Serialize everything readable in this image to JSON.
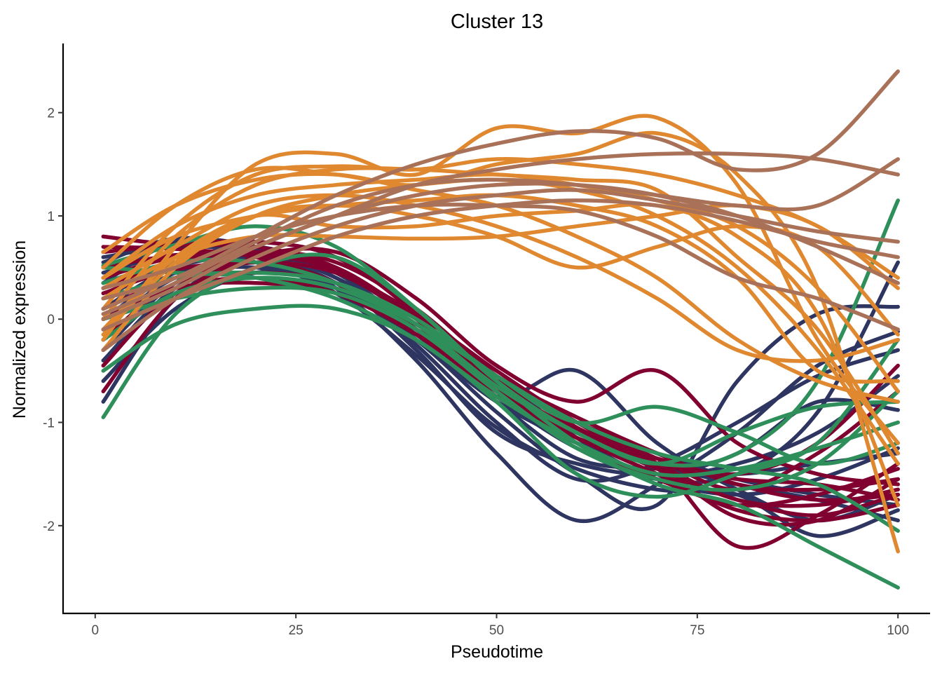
{
  "chart_data": {
    "type": "line",
    "title": "Cluster 13",
    "xlabel": "Pseudotime",
    "ylabel": "Normalized expression",
    "xlim": [
      -4,
      104
    ],
    "ylim": [
      -2.85,
      2.67
    ],
    "x_ticks": [
      0,
      25,
      50,
      75,
      100
    ],
    "y_ticks": [
      -2,
      -1,
      0,
      1,
      2
    ],
    "x_tick_labels": [
      "0",
      "25",
      "50",
      "75",
      "100"
    ],
    "y_tick_labels": [
      "-2",
      "-1",
      "0",
      "1",
      "2"
    ],
    "grid": false,
    "legend": "none",
    "x": [
      1,
      10,
      20,
      30,
      40,
      50,
      60,
      70,
      80,
      90,
      100
    ],
    "series": [
      {
        "color": "#2E3561",
        "values": [
          0.55,
          0.78,
          0.68,
          0.3,
          -0.4,
          -1.3,
          -1.95,
          -1.6,
          -1.1,
          -0.45,
          -0.12
        ]
      },
      {
        "color": "#2E3561",
        "values": [
          -0.8,
          0.2,
          0.6,
          0.4,
          -0.2,
          -0.8,
          -1.35,
          -1.45,
          -1.5,
          -1.4,
          -1.3
        ]
      },
      {
        "color": "#2E3561",
        "values": [
          0.2,
          0.55,
          0.7,
          0.45,
          -0.1,
          -0.7,
          -1.1,
          -1.4,
          -1.6,
          -1.75,
          -1.95
        ]
      },
      {
        "color": "#2E3561",
        "values": [
          -0.4,
          0.3,
          0.55,
          0.35,
          -0.15,
          -0.75,
          -1.25,
          -1.55,
          -1.5,
          -0.9,
          0.55
        ]
      },
      {
        "color": "#2E3561",
        "values": [
          0.6,
          0.7,
          0.65,
          0.4,
          -0.1,
          -0.75,
          -0.5,
          -1.2,
          -1.65,
          -1.95,
          -1.7
        ]
      },
      {
        "color": "#2E3561",
        "values": [
          -0.1,
          0.4,
          0.5,
          0.3,
          -0.2,
          -0.9,
          -1.5,
          -1.8,
          -0.6,
          0.05,
          0.12
        ]
      },
      {
        "color": "#2E3561",
        "values": [
          0.35,
          0.75,
          0.7,
          0.4,
          -0.05,
          -0.6,
          -1.0,
          -1.3,
          -1.55,
          -1.7,
          -1.8
        ]
      },
      {
        "color": "#2E3561",
        "values": [
          -0.6,
          0.1,
          0.45,
          0.35,
          -0.3,
          -1.1,
          -1.4,
          -1.5,
          -1.3,
          -0.8,
          -0.88
        ]
      },
      {
        "color": "#2E3561",
        "values": [
          0.1,
          0.5,
          0.6,
          0.35,
          -0.25,
          -1.0,
          -1.55,
          -1.4,
          -1.0,
          -0.55,
          -0.3
        ]
      },
      {
        "color": "#2E3561",
        "values": [
          0.45,
          0.62,
          0.55,
          0.25,
          -0.35,
          -1.05,
          -1.45,
          -1.65,
          -1.7,
          -2.1,
          -1.85
        ]
      },
      {
        "color": "#2E3561",
        "values": [
          -0.3,
          0.35,
          0.6,
          0.45,
          0.0,
          -0.55,
          -1.15,
          -1.55,
          -1.7,
          -1.55,
          -1.25
        ]
      },
      {
        "color": "#2E3561",
        "values": [
          0.0,
          0.45,
          0.55,
          0.35,
          -0.2,
          -0.8,
          -1.2,
          -1.5,
          -1.4,
          -1.1,
          -0.55
        ]
      },
      {
        "color": "#800030",
        "values": [
          0.8,
          0.72,
          0.7,
          0.5,
          0.0,
          -0.65,
          -1.1,
          -1.45,
          -1.75,
          -1.9,
          -1.7
        ]
      },
      {
        "color": "#800030",
        "values": [
          -0.7,
          0.2,
          0.6,
          0.65,
          0.2,
          -0.45,
          -0.8,
          -0.5,
          -1.2,
          -1.5,
          -1.6
        ]
      },
      {
        "color": "#800030",
        "values": [
          0.3,
          0.55,
          0.65,
          0.55,
          0.1,
          -0.55,
          -1.05,
          -1.4,
          -2.2,
          -1.9,
          -1.4
        ]
      },
      {
        "color": "#800030",
        "values": [
          0.65,
          0.72,
          0.75,
          0.6,
          0.05,
          -0.7,
          -1.15,
          -1.5,
          -1.85,
          -1.95,
          -1.8
        ]
      },
      {
        "color": "#800030",
        "values": [
          -0.2,
          0.35,
          0.45,
          0.35,
          -0.05,
          -0.6,
          -1.0,
          -1.3,
          -1.6,
          -1.65,
          -1.55
        ]
      },
      {
        "color": "#800030",
        "values": [
          0.1,
          0.4,
          0.55,
          0.45,
          0.05,
          -0.5,
          -1.0,
          -1.4,
          -1.75,
          -1.8,
          -1.65
        ]
      },
      {
        "color": "#800030",
        "values": [
          0.5,
          0.62,
          0.65,
          0.5,
          0.0,
          -0.65,
          -1.2,
          -1.55,
          -1.8,
          -1.7,
          -1.45
        ]
      },
      {
        "color": "#800030",
        "values": [
          -0.45,
          0.25,
          0.4,
          0.25,
          -0.15,
          -0.7,
          -1.1,
          -1.35,
          -1.5,
          -1.2,
          -0.45
        ]
      },
      {
        "color": "#800030",
        "values": [
          0.25,
          0.48,
          0.55,
          0.45,
          0.0,
          -0.55,
          -0.95,
          -1.3,
          -1.6,
          -1.75,
          -1.7
        ]
      },
      {
        "color": "#800030",
        "values": [
          0.4,
          0.6,
          0.62,
          0.48,
          0.02,
          -0.62,
          -1.08,
          -1.42,
          -1.92,
          -1.95,
          -1.55
        ]
      },
      {
        "color": "#800030",
        "values": [
          0.0,
          0.3,
          0.35,
          0.25,
          -0.1,
          -0.6,
          -1.0,
          -1.35,
          -1.65,
          -1.3,
          -0.7
        ]
      },
      {
        "color": "#800030",
        "values": [
          0.7,
          0.68,
          0.6,
          0.35,
          -0.1,
          -0.75,
          -1.15,
          -1.4,
          -1.55,
          -1.6,
          -1.75
        ]
      },
      {
        "color": "#2E8F5A",
        "values": [
          -0.95,
          0.05,
          0.5,
          0.6,
          0.1,
          -0.6,
          -1.1,
          -1.4,
          -1.3,
          -0.6,
          1.15
        ]
      },
      {
        "color": "#2E8F5A",
        "values": [
          0.52,
          0.72,
          0.9,
          0.7,
          0.1,
          -0.6,
          -1.2,
          -1.6,
          -1.8,
          -2.2,
          -2.6
        ]
      },
      {
        "color": "#2E8F5A",
        "values": [
          -0.5,
          -0.05,
          0.1,
          0.1,
          -0.2,
          -0.8,
          -1.5,
          -1.72,
          -1.5,
          -1.2,
          -0.2
        ]
      },
      {
        "color": "#2E8F5A",
        "values": [
          0.2,
          0.4,
          0.45,
          0.35,
          0.0,
          -0.55,
          -1.0,
          -0.85,
          -1.1,
          -1.4,
          -1.2
        ]
      },
      {
        "color": "#2E8F5A",
        "values": [
          -0.2,
          0.25,
          0.4,
          0.3,
          -0.05,
          -0.55,
          -1.0,
          -1.3,
          -1.45,
          -1.6,
          -2.05
        ]
      },
      {
        "color": "#2E8F5A",
        "values": [
          0.35,
          0.55,
          0.55,
          0.35,
          -0.05,
          -0.65,
          -1.1,
          -1.4,
          -1.1,
          -0.85,
          -0.8
        ]
      },
      {
        "color": "#2E8F5A",
        "values": [
          0.0,
          0.2,
          0.3,
          0.25,
          -0.1,
          -0.7,
          -1.25,
          -1.55,
          -1.65,
          -1.4,
          -0.7
        ]
      },
      {
        "color": "#2E8F5A",
        "values": [
          0.5,
          0.45,
          0.4,
          0.2,
          -0.2,
          -0.75,
          -1.2,
          -1.5,
          -1.45,
          -1.25,
          -1.0
        ]
      },
      {
        "color": "#E0882F",
        "values": [
          0.1,
          0.9,
          1.4,
          1.48,
          1.45,
          1.55,
          1.5,
          1.4,
          1.2,
          0.9,
          0.4
        ]
      },
      {
        "color": "#E0882F",
        "values": [
          -0.2,
          0.7,
          1.5,
          1.6,
          1.4,
          1.85,
          1.8,
          1.95,
          1.3,
          -0.2,
          -1.2
        ]
      },
      {
        "color": "#E0882F",
        "values": [
          0.4,
          0.9,
          1.2,
          1.3,
          1.35,
          1.4,
          1.3,
          1.15,
          0.9,
          0.3,
          -0.7
        ]
      },
      {
        "color": "#E0882F",
        "values": [
          -0.1,
          0.6,
          1.0,
          0.9,
          0.9,
          1.0,
          1.05,
          1.1,
          0.8,
          0.05,
          -1.8
        ]
      },
      {
        "color": "#E0882F",
        "values": [
          0.3,
          0.7,
          1.1,
          1.2,
          1.1,
          0.9,
          0.6,
          0.2,
          -0.3,
          -0.4,
          -0.2
        ]
      },
      {
        "color": "#E0882F",
        "values": [
          0.2,
          0.6,
          0.8,
          0.8,
          0.78,
          0.8,
          0.9,
          1.0,
          1.1,
          0.9,
          0.3
        ]
      },
      {
        "color": "#E0882F",
        "values": [
          0.5,
          1.1,
          1.45,
          1.4,
          1.3,
          1.5,
          1.6,
          1.8,
          1.4,
          0.3,
          -2.25
        ]
      },
      {
        "color": "#E0882F",
        "values": [
          -0.3,
          0.5,
          1.0,
          1.2,
          1.3,
          1.35,
          1.25,
          1.0,
          0.5,
          -0.3,
          -1.4
        ]
      },
      {
        "color": "#E0882F",
        "values": [
          0.65,
          1.1,
          1.35,
          1.4,
          1.25,
          1.1,
          0.8,
          0.4,
          -0.2,
          -0.6,
          -0.8
        ]
      },
      {
        "color": "#E0882F",
        "values": [
          0.0,
          0.8,
          1.3,
          1.45,
          1.45,
          1.4,
          1.35,
          1.25,
          0.6,
          -0.1,
          -1.3
        ]
      },
      {
        "color": "#E0882F",
        "values": [
          0.4,
          0.8,
          1.0,
          1.1,
          1.15,
          1.2,
          1.1,
          0.9,
          0.4,
          -0.5,
          -0.6
        ]
      },
      {
        "color": "#E0882F",
        "values": [
          -0.15,
          0.55,
          1.0,
          1.1,
          1.0,
          0.8,
          0.5,
          0.7,
          0.9,
          0.7,
          -0.15
        ]
      },
      {
        "color": "#A87158",
        "values": [
          0.2,
          0.4,
          0.8,
          1.2,
          1.5,
          1.7,
          1.82,
          1.75,
          1.45,
          1.6,
          2.4
        ]
      },
      {
        "color": "#A87158",
        "values": [
          -0.3,
          0.2,
          0.6,
          0.9,
          1.1,
          1.2,
          1.25,
          1.15,
          1.0,
          0.85,
          0.75
        ]
      },
      {
        "color": "#A87158",
        "values": [
          0.0,
          0.3,
          0.7,
          1.0,
          1.3,
          1.45,
          1.55,
          1.6,
          1.6,
          1.55,
          1.4
        ]
      },
      {
        "color": "#A87158",
        "values": [
          0.3,
          0.5,
          0.8,
          1.0,
          1.1,
          1.1,
          1.05,
          0.8,
          0.4,
          0.2,
          -0.1
        ]
      },
      {
        "color": "#A87158",
        "values": [
          -0.1,
          0.2,
          0.5,
          0.8,
          1.0,
          1.1,
          1.15,
          1.1,
          0.95,
          0.75,
          0.6
        ]
      },
      {
        "color": "#A87158",
        "values": [
          0.1,
          0.4,
          0.7,
          1.0,
          1.2,
          1.3,
          1.3,
          1.2,
          1.0,
          0.7,
          0.35
        ]
      },
      {
        "color": "#A87158",
        "values": [
          0.05,
          0.35,
          0.75,
          1.1,
          1.3,
          1.35,
          1.3,
          1.2,
          1.1,
          1.1,
          1.55
        ]
      }
    ]
  }
}
